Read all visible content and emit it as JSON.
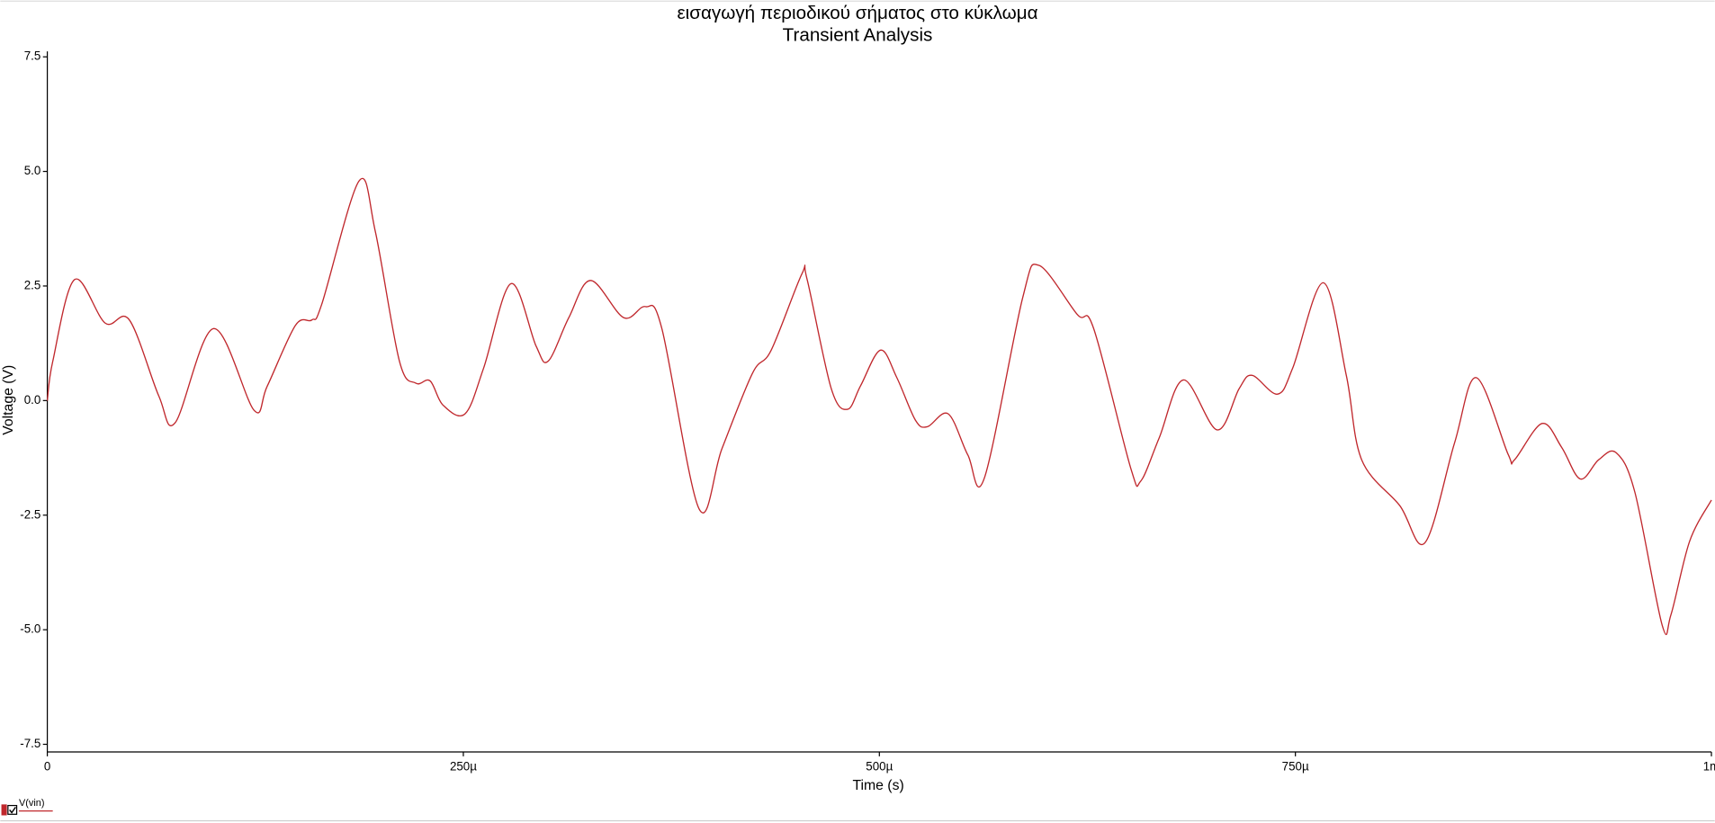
{
  "chart_data": {
    "type": "line",
    "title": "εισαγωγή περιοδικού σήματος στο κύκλωμα",
    "subtitle": "Transient Analysis",
    "x_label": "Time (s)",
    "y_label": "Voltage (V)",
    "x": [
      0,
      3.3e-06,
      1.64e-05,
      3.48e-05,
      4.93e-05,
      6.7e-05,
      7.69e-05,
      9.99e-05,
      0.0001242,
      0.0001321,
      0.0001491,
      0.000159,
      0.0001649,
      0.0001873,
      0.0001971,
      0.0002116,
      0.0002214,
      0.00023,
      0.0002378,
      0.000251,
      0.0002622,
      0.0002786,
      0.0002937,
      0.000301,
      0.0003134,
      0.0003265,
      0.0003463,
      0.0003594,
      0.0003693,
      0.0003916,
      0.0004054,
      0.0004238,
      0.000435,
      0.0004534,
      0.0004566,
      0.0004711,
      0.0004809,
      0.0004888,
      0.0005007,
      0.0005105,
      0.0005217,
      0.0005289,
      0.0005414,
      0.0005532,
      0.0005631,
      0.0005861,
      0.0005959,
      0.0006189,
      0.0006288,
      0.0006511,
      0.000657,
      0.0006682,
      0.0006827,
      0.000703,
      0.0007162,
      0.000724,
      0.0007392,
      0.0007484,
      0.0007668,
      0.0007806,
      0.0007898,
      0.0008127,
      0.0008279,
      0.0008456,
      0.0008587,
      0.0008778,
      0.0008817,
      0.0008982,
      0.00091,
      0.0009212,
      0.0009323,
      0.0009428,
      0.000954,
      0.0009704,
      0.0009757,
      0.0009869,
      0.001
    ],
    "series": [
      {
        "name": "V(vin)",
        "color": "#c0282d",
        "values": [
          0,
          0.86,
          2.64,
          1.69,
          1.76,
          0.1,
          -0.48,
          1.57,
          -0.21,
          0.31,
          1.64,
          1.76,
          2.1,
          4.79,
          3.69,
          0.86,
          0.38,
          0.43,
          -0.1,
          -0.29,
          0.71,
          2.55,
          1.19,
          0.86,
          1.81,
          2.62,
          1.81,
          2.05,
          1.57,
          -2.36,
          -1.05,
          0.6,
          1.1,
          2.76,
          2.64,
          0.26,
          -0.19,
          0.33,
          1.1,
          0.5,
          -0.43,
          -0.57,
          -0.29,
          -1.19,
          -1.69,
          2.24,
          2.95,
          1.88,
          1.57,
          -1.48,
          -1.76,
          -0.81,
          0.45,
          -0.64,
          0.26,
          0.55,
          0.14,
          0.71,
          2.57,
          0.55,
          -1.29,
          -2.29,
          -3.1,
          -0.93,
          0.5,
          -1.17,
          -1.29,
          -0.5,
          -1.02,
          -1.71,
          -1.29,
          -1.14,
          -2,
          -4.9,
          -4.67,
          -3.07,
          -2.17
        ]
      }
    ],
    "xlim": [
      0,
      0.001
    ],
    "xticks": [
      0,
      {
        "value": 0.00025,
        "label": "250µ"
      },
      {
        "value": 0.0005,
        "label": "500µ"
      },
      {
        "value": 0.00075,
        "label": "750µ"
      },
      {
        "value": 0.001,
        "label": "1m"
      }
    ],
    "ylim": [
      -7.5,
      7.5
    ],
    "yticks": [
      7.5,
      {
        "value": 5,
        "label": "5.0"
      },
      2.5,
      {
        "value": 0,
        "label": "0.0"
      },
      -2.5,
      {
        "value": -5,
        "label": "-5.0"
      },
      -7.5
    ],
    "grid": false
  }
}
